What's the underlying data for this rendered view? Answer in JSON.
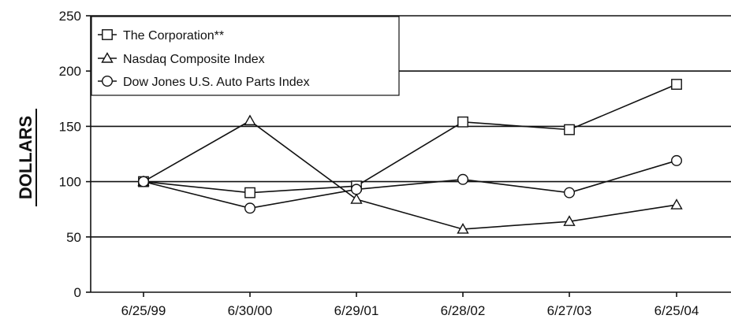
{
  "chart_data": {
    "type": "line",
    "title": "",
    "xlabel": "",
    "ylabel": "DOLLARS",
    "categories": [
      "6/25/99",
      "6/30/00",
      "6/29/01",
      "6/28/02",
      "6/27/03",
      "6/25/04"
    ],
    "ylim": [
      0,
      250
    ],
    "yticks": [
      0,
      50,
      100,
      150,
      200,
      250
    ],
    "grid": "horizontal",
    "legend_position": "top-left",
    "series": [
      {
        "name": "The Corporation**",
        "marker": "square",
        "values": [
          100,
          90,
          96,
          154,
          147,
          188
        ]
      },
      {
        "name": "Nasdaq Composite Index",
        "marker": "triangle",
        "values": [
          100,
          155,
          84,
          57,
          64,
          79
        ]
      },
      {
        "name": "Dow Jones U.S. Auto Parts Index",
        "marker": "circle",
        "values": [
          100,
          76,
          93,
          102,
          90,
          119
        ]
      }
    ]
  }
}
